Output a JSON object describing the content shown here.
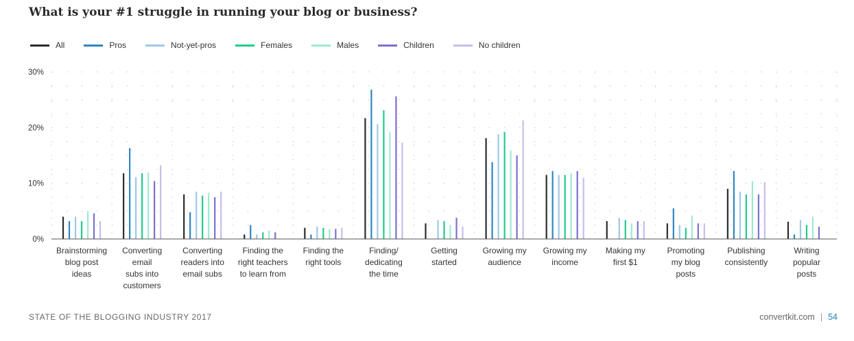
{
  "footer": {
    "left": "STATE OF THE BLOGGING INDUSTRY 2017",
    "site": "convertkit.com",
    "separator": "|",
    "page": "54"
  },
  "chart_data": {
    "type": "bar",
    "title": "What is your #1 struggle in running your blog or business?",
    "ylim": [
      0,
      30
    ],
    "yticks": [
      0,
      10,
      20,
      30
    ],
    "ytick_labels": [
      "0%",
      "10%",
      "20%",
      "30%"
    ],
    "grid": true,
    "legend_position": "top-left",
    "categories": [
      [
        "Brainstorming",
        "blog post",
        "ideas"
      ],
      [
        "Converting",
        "email",
        "subs into",
        "customers"
      ],
      [
        "Converting",
        "readers into",
        "email subs"
      ],
      [
        "Finding the",
        "right teachers",
        "to learn from"
      ],
      [
        "Finding the",
        "right tools"
      ],
      [
        "Finding/",
        "dedicating",
        "the time"
      ],
      [
        "Getting",
        "started"
      ],
      [
        "Growing my",
        "audience"
      ],
      [
        "Growing my",
        "income"
      ],
      [
        "Making my",
        "first $1"
      ],
      [
        "Promoting",
        "my blog",
        "posts"
      ],
      [
        "Publishing",
        "consistently"
      ],
      [
        "Writing",
        "popular",
        "posts"
      ]
    ],
    "series": [
      {
        "name": "All",
        "color": "#2b2b2b",
        "values": [
          4.0,
          11.8,
          8.0,
          0.8,
          2.0,
          21.7,
          2.8,
          18.1,
          11.5,
          3.2,
          2.8,
          9.0,
          3.1
        ]
      },
      {
        "name": "Pros",
        "color": "#2e86c1",
        "values": [
          3.2,
          16.3,
          4.8,
          2.5,
          0.8,
          26.8,
          0.0,
          13.8,
          12.2,
          0.0,
          5.5,
          12.2,
          0.8
        ]
      },
      {
        "name": "Not-yet-pros",
        "color": "#9dc8e6",
        "values": [
          4.0,
          11.1,
          8.5,
          0.8,
          2.2,
          20.6,
          3.4,
          18.8,
          11.5,
          3.8,
          2.5,
          8.5,
          3.4
        ]
      },
      {
        "name": "Females",
        "color": "#1fcc8a",
        "values": [
          3.2,
          11.8,
          7.8,
          1.2,
          2.0,
          23.1,
          3.2,
          19.2,
          11.5,
          3.4,
          2.0,
          8.0,
          2.5
        ]
      },
      {
        "name": "Males",
        "color": "#9de9cf",
        "values": [
          5.0,
          11.9,
          8.3,
          1.5,
          1.8,
          19.2,
          2.5,
          15.9,
          11.8,
          2.8,
          4.2,
          10.4,
          4.0
        ]
      },
      {
        "name": "Children",
        "color": "#7b6fd0",
        "values": [
          4.6,
          10.4,
          7.5,
          1.2,
          1.8,
          25.6,
          3.8,
          15.0,
          12.2,
          3.2,
          2.8,
          8.0,
          2.2
        ]
      },
      {
        "name": "No children",
        "color": "#c3bfea",
        "values": [
          3.2,
          13.2,
          8.5,
          0.0,
          2.0,
          17.3,
          2.2,
          21.3,
          11.0,
          3.2,
          2.8,
          10.2,
          0.0
        ]
      }
    ]
  }
}
